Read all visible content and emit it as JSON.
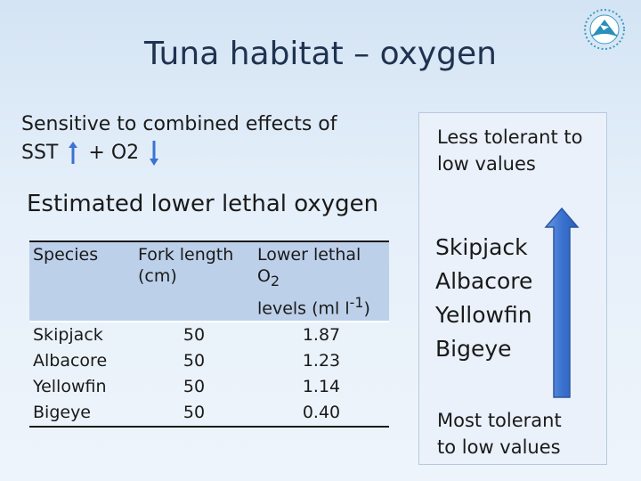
{
  "slide": {
    "title": "Tuna habitat – oxygen",
    "logo_icon": "org-logo-icon",
    "intro_line1": "Sensitive to combined effects of",
    "sst_label": "SST",
    "plus": "+",
    "o2_label": "O2",
    "subheading": "Estimated lower lethal oxygen"
  },
  "table": {
    "headers": {
      "species": "Species",
      "fork_length_1": "Fork length",
      "fork_length_2": "(cm)",
      "lethal_1": "Lower lethal O",
      "lethal_1_sub": "2",
      "lethal_2a": "levels (ml l",
      "lethal_2_sup": "-1",
      "lethal_2b": ")"
    },
    "rows": [
      {
        "species": "Skipjack",
        "fork_length": "50",
        "lethal": "1.87"
      },
      {
        "species": "Albacore",
        "fork_length": "50",
        "lethal": "1.23"
      },
      {
        "species": "Yellowfin",
        "fork_length": "50",
        "lethal": "1.14"
      },
      {
        "species": "Bigeye",
        "fork_length": "50",
        "lethal": "0.40"
      }
    ]
  },
  "panel": {
    "top_line1": "Less tolerant to",
    "top_line2": "low values",
    "species": [
      "Skipjack",
      "Albacore",
      "Yellowfin",
      "Bigeye"
    ],
    "bottom_line1": "Most tolerant",
    "bottom_line2": "to low values",
    "arrow_color": "#3b73d1"
  },
  "colors": {
    "title": "#1f3350",
    "table_header_bg": "#bdd0ea",
    "sst_arrow": "#3b73d1"
  }
}
